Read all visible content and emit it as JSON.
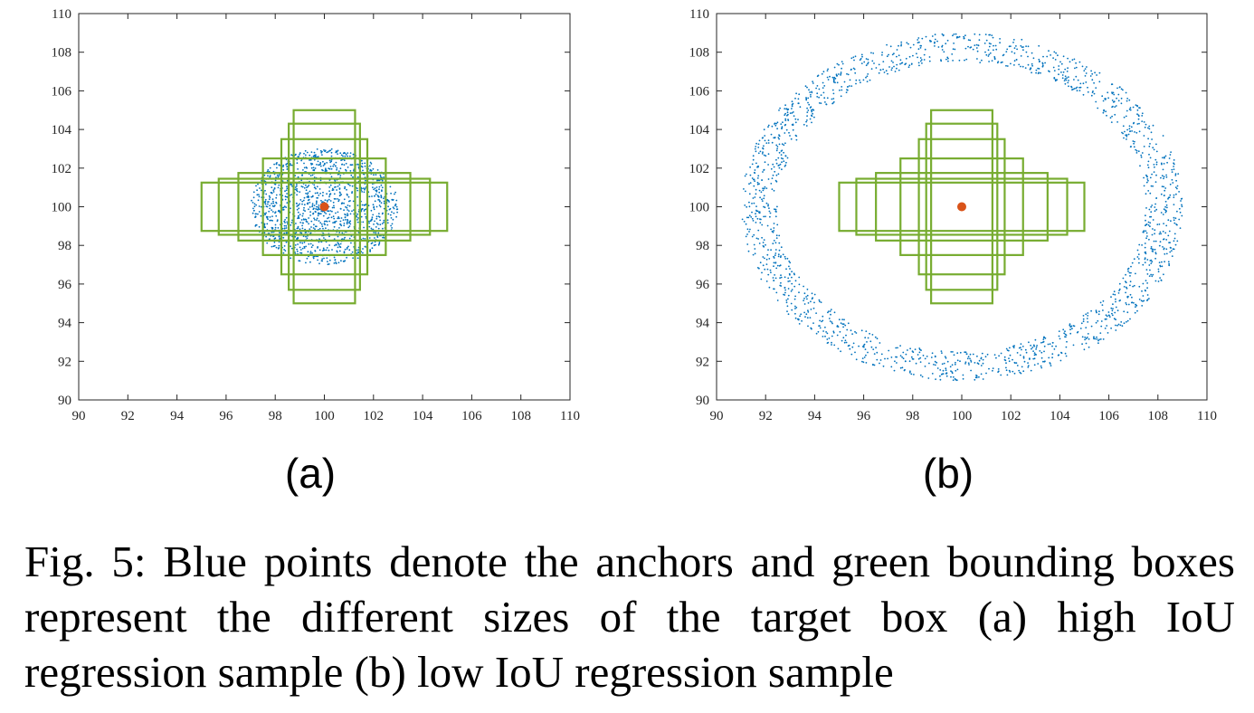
{
  "chart_data": [
    {
      "type": "scatter",
      "panel_label": "(a)",
      "xlim": [
        90,
        110
      ],
      "ylim": [
        90,
        110
      ],
      "xticks": [
        90,
        92,
        94,
        96,
        98,
        100,
        102,
        104,
        106,
        108,
        110
      ],
      "yticks": [
        90,
        92,
        94,
        96,
        98,
        100,
        102,
        104,
        106,
        108,
        110
      ],
      "grid": false,
      "anchor_distribution": {
        "shape": "filled-ellipse",
        "center": [
          100,
          100
        ],
        "radius_x": 3,
        "radius_y": 3,
        "count": 1400,
        "color": "#0072BD"
      },
      "target_center": {
        "x": 100,
        "y": 100,
        "color": "#D95319"
      },
      "target_boxes": [
        {
          "x_range": [
            95.0,
            105.0
          ],
          "y_range": [
            98.75,
            101.25
          ]
        },
        {
          "x_range": [
            95.7,
            104.3
          ],
          "y_range": [
            98.55,
            101.45
          ]
        },
        {
          "x_range": [
            96.5,
            103.5
          ],
          "y_range": [
            98.25,
            101.75
          ]
        },
        {
          "x_range": [
            97.5,
            102.5
          ],
          "y_range": [
            97.5,
            102.5
          ]
        },
        {
          "x_range": [
            98.25,
            101.75
          ],
          "y_range": [
            96.5,
            103.5
          ]
        },
        {
          "x_range": [
            98.55,
            101.45
          ],
          "y_range": [
            95.7,
            104.3
          ]
        },
        {
          "x_range": [
            98.75,
            101.25
          ],
          "y_range": [
            95.0,
            105.0
          ]
        }
      ],
      "box_color": "#77AC30"
    },
    {
      "type": "scatter",
      "panel_label": "(b)",
      "xlim": [
        90,
        110
      ],
      "ylim": [
        90,
        110
      ],
      "xticks": [
        90,
        92,
        94,
        96,
        98,
        100,
        102,
        104,
        106,
        108,
        110
      ],
      "yticks": [
        90,
        92,
        94,
        96,
        98,
        100,
        102,
        104,
        106,
        108,
        110
      ],
      "grid": false,
      "anchor_distribution": {
        "shape": "elliptical-ring",
        "center": [
          100,
          100
        ],
        "inner_radius_x": 7.5,
        "outer_radius_x": 9,
        "inner_radius_y": 7.5,
        "outer_radius_y": 9,
        "count": 1800,
        "color": "#0072BD"
      },
      "target_center": {
        "x": 100,
        "y": 100,
        "color": "#D95319"
      },
      "target_boxes": [
        {
          "x_range": [
            95.0,
            105.0
          ],
          "y_range": [
            98.75,
            101.25
          ]
        },
        {
          "x_range": [
            95.7,
            104.3
          ],
          "y_range": [
            98.55,
            101.45
          ]
        },
        {
          "x_range": [
            96.5,
            103.5
          ],
          "y_range": [
            98.25,
            101.75
          ]
        },
        {
          "x_range": [
            97.5,
            102.5
          ],
          "y_range": [
            97.5,
            102.5
          ]
        },
        {
          "x_range": [
            98.25,
            101.75
          ],
          "y_range": [
            96.5,
            103.5
          ]
        },
        {
          "x_range": [
            98.55,
            101.45
          ],
          "y_range": [
            95.7,
            104.3
          ]
        },
        {
          "x_range": [
            98.75,
            101.25
          ],
          "y_range": [
            95.0,
            105.0
          ]
        }
      ],
      "box_color": "#77AC30"
    }
  ],
  "caption": "Fig. 5: Blue points denote the anchors and green bounding boxes represent the different sizes of the target box (a) high IoU regression sample (b) low IoU regression sample"
}
